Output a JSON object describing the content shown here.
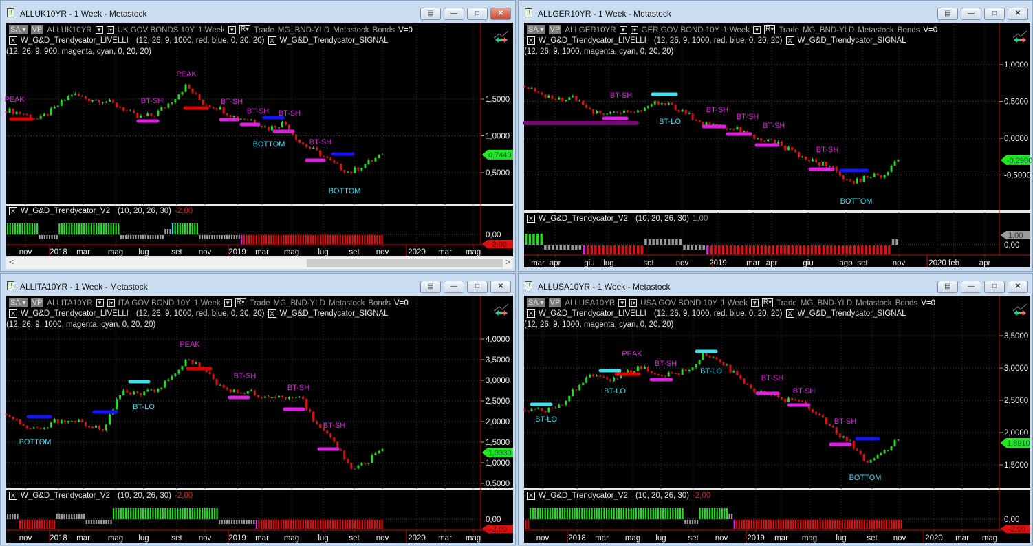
{
  "colors": {
    "up": "#22dd22",
    "down": "#e01010",
    "magenta": "#e020e0",
    "cyan": "#40e0f0",
    "blue": "#1414ff",
    "red": "#e00000",
    "purple": "#7a0a7a",
    "gray": "#9a9a9a",
    "last_price_tag": "#22e622"
  },
  "windows": [
    {
      "title": "ALLUK10YR - 1 Week - Metastock",
      "active": true,
      "header": {
        "sa": "SA",
        "vp": "VP",
        "symbol": "ALLUK10YR",
        "description": "UK GOV BONDS 10Y",
        "period": "1 Week",
        "r": "R",
        "trade": "Trade",
        "group": "MG_BND-YLD",
        "source": "Metastock",
        "sector": "Bonds",
        "v": "V=0"
      },
      "studies": {
        "livelli_name": "W_G&D_Trendycator_LIVELLI",
        "livelli_params": "(12, 26, 9, 1000, red, blue, 0, 20, 20)",
        "signal_name": "W_G&D_Trendycator_SIGNAL",
        "signal_params": "(12, 26, 9, 900, magenta, cyan, 0, 20, 20)"
      },
      "price_axis": [
        {
          "label": "1,5000",
          "value": 1.5
        },
        {
          "label": "1,0000",
          "value": 1.0
        },
        {
          "label": "0,5000",
          "value": 0.5
        }
      ],
      "last_price": "0,7440",
      "closes": [
        1.35,
        1.3,
        1.22,
        1.38,
        1.57,
        1.5,
        1.48,
        1.39,
        1.25,
        1.28,
        1.45,
        1.68,
        1.45,
        1.38,
        1.25,
        1.22,
        1.1,
        1.18,
        0.9,
        0.78,
        0.62,
        0.5,
        0.62,
        0.744
      ],
      "annotations": [
        {
          "text": "PEAK",
          "color": "magenta"
        },
        {
          "text": "BT-SH",
          "color": "magenta"
        },
        {
          "text": "PEAK",
          "color": "magenta"
        },
        {
          "text": "BT-SH",
          "color": "magenta"
        },
        {
          "text": "BT-SH",
          "color": "magenta"
        },
        {
          "text": "BT-SH",
          "color": "magenta"
        },
        {
          "text": "BOTTOM",
          "color": "cyan"
        },
        {
          "text": "BT-SH",
          "color": "magenta"
        },
        {
          "text": "BOTTOM",
          "color": "cyan"
        }
      ],
      "levels": [
        "red",
        "magenta",
        "red",
        "magenta",
        "magenta",
        "blue",
        "magenta",
        "magenta",
        "blue"
      ],
      "oscillator": {
        "name": "W_G&D_Trendycator_V2",
        "params": "(10, 20, 26, 30)",
        "value": "-2,00",
        "value_color": "#e02020",
        "zero_label": "0,00",
        "last_tag": "-2,00",
        "last_tag_color": "#e01010",
        "segments": [
          {
            "state": "green",
            "count": 13
          },
          {
            "state": "gray_lo",
            "count": 8
          },
          {
            "state": "green",
            "count": 25
          },
          {
            "state": "gray_lo",
            "count": 18
          },
          {
            "state": "gray_hi",
            "count": 3
          },
          {
            "state": "cyan",
            "count": 1
          },
          {
            "state": "green",
            "count": 10
          },
          {
            "state": "gray_lo",
            "count": 17
          },
          {
            "state": "magenta",
            "count": 1
          },
          {
            "state": "red",
            "count": 57
          }
        ]
      },
      "time_axis": [
        "nov",
        "2018",
        "mar",
        "mag",
        "lug",
        "set",
        "nov",
        "2019",
        "mar",
        "mag",
        "lug",
        "set",
        "nov",
        "2020",
        "mar",
        "mag"
      ],
      "scrollbar": {
        "left": "<",
        "right": ">"
      }
    },
    {
      "title": "ALLGER10YR - 1 Week - Metastock",
      "active": false,
      "header": {
        "sa": "SA",
        "vp": "VP",
        "symbol": "ALLGER10YR",
        "description": "GER GOV BOND 10Y",
        "period": "1 Week",
        "r": "R",
        "trade": "Trade",
        "group": "MG_BND-YLD",
        "source": "Metastock",
        "sector": "Bonds",
        "v": "V=0"
      },
      "studies": {
        "livelli_name": "W_G&D_Trendycator_LIVELLI",
        "livelli_params": "(12, 26, 9, 1000, red, blue, 0, 20, 20)",
        "signal_name": "W_G&D_Trendycator_SIGNAL",
        "signal_params": "(12, 26, 9, 1000, magenta, cyan, 0, 20, 20)"
      },
      "price_axis": [
        {
          "label": "1,0000",
          "value": 1.0
        },
        {
          "label": "0,5000",
          "value": 0.5
        },
        {
          "label": "0,0000",
          "value": 0.0
        },
        {
          "label": "-0,5000",
          "value": -0.5
        }
      ],
      "last_price": "-0,2980",
      "closes": [
        0.68,
        0.6,
        0.53,
        0.55,
        0.37,
        0.34,
        0.38,
        0.36,
        0.5,
        0.45,
        0.32,
        0.2,
        0.18,
        0.14,
        0.03,
        -0.02,
        -0.12,
        -0.25,
        -0.33,
        -0.37,
        -0.62,
        -0.52,
        -0.5,
        -0.298
      ],
      "annotations": [
        {
          "text": "BT-SH",
          "color": "magenta"
        },
        {
          "text": "BT-LO",
          "color": "cyan"
        },
        {
          "text": "BT-SH",
          "color": "magenta"
        },
        {
          "text": "BT-SH",
          "color": "magenta"
        },
        {
          "text": "BT-SH",
          "color": "magenta"
        },
        {
          "text": "BT-SH",
          "color": "magenta"
        },
        {
          "text": "BOTTOM",
          "color": "cyan"
        }
      ],
      "levels": [
        "purple",
        "magenta",
        "cyan",
        "magenta",
        "magenta",
        "magenta",
        "magenta",
        "blue"
      ],
      "oscillator": {
        "name": "W_G&D_Trendycator_V2",
        "params": "(10, 20, 26, 30)",
        "value": "1,00",
        "value_color": "#8a8a8a",
        "zero_label": "0,00",
        "last_tag": "1,00",
        "last_tag_color": "#9a9a9a",
        "segments": [
          {
            "state": "green",
            "count": 5
          },
          {
            "state": "gray_lo",
            "count": 10
          },
          {
            "state": "magenta",
            "count": 1
          },
          {
            "state": "red",
            "count": 15
          },
          {
            "state": "gray_hi",
            "count": 10
          },
          {
            "state": "gray_lo",
            "count": 6
          },
          {
            "state": "magenta",
            "count": 1
          },
          {
            "state": "red",
            "count": 47
          },
          {
            "state": "gray_hi",
            "count": 2
          }
        ]
      },
      "time_axis": [
        "mar",
        "apr",
        "giu",
        "lug",
        "set",
        "nov",
        "2019",
        "mar",
        "apr",
        "giu",
        "ago",
        "set",
        "nov",
        "2020",
        "feb",
        "apr"
      ]
    },
    {
      "title": "ALLITA10YR - 1 Week - Metastock",
      "active": false,
      "header": {
        "sa": "SA",
        "vp": "VP",
        "symbol": "ALLITA10YR",
        "description": "ITA GOV BOND 10Y",
        "period": "1 Week",
        "r": "R",
        "trade": "Trade",
        "group": "MG_BND-YLD",
        "source": "Metastock",
        "sector": "Bonds",
        "v": "V=0"
      },
      "studies": {
        "livelli_name": "W_G&D_Trendycator_LIVELLI",
        "livelli_params": "(12, 26, 9, 1000, red, blue, 0, 20, 20)",
        "signal_name": "W_G&D_Trendycator_SIGNAL",
        "signal_params": "(12, 26, 9, 1000, magenta, cyan, 0, 20, 20)"
      },
      "price_axis": [
        {
          "label": "4,0000",
          "value": 4.0
        },
        {
          "label": "3,5000",
          "value": 3.5
        },
        {
          "label": "3,0000",
          "value": 3.0
        },
        {
          "label": "2,5000",
          "value": 2.5
        },
        {
          "label": "2,0000",
          "value": 2.0
        },
        {
          "label": "1,5000",
          "value": 1.5
        },
        {
          "label": "1,0000",
          "value": 1.0
        },
        {
          "label": "0.5000",
          "value": 0.5
        }
      ],
      "last_price": "1,3330",
      "closes": [
        2.2,
        1.92,
        1.8,
        2.0,
        2.08,
        1.88,
        1.82,
        2.7,
        2.68,
        2.75,
        3.0,
        3.5,
        3.3,
        2.85,
        2.72,
        2.7,
        2.52,
        2.62,
        2.6,
        1.9,
        1.55,
        0.88,
        1.0,
        1.333
      ],
      "annotations": [
        {
          "text": "BOTTOM",
          "color": "cyan"
        },
        {
          "text": "BT-LO",
          "color": "cyan"
        },
        {
          "text": "PEAK",
          "color": "magenta"
        },
        {
          "text": "BT-SH",
          "color": "magenta"
        },
        {
          "text": "BT-SH",
          "color": "magenta"
        },
        {
          "text": "BT-SH",
          "color": "magenta"
        }
      ],
      "levels": [
        "blue",
        "blue",
        "cyan",
        "red",
        "magenta",
        "magenta",
        "magenta"
      ],
      "oscillator": {
        "name": "W_G&D_Trendycator_V2",
        "params": "(10, 20, 26, 30)",
        "value": "-2,00",
        "value_color": "#e02020",
        "zero_label": "0,00",
        "last_tag": "-2,00",
        "last_tag_color": "#e01010",
        "segments": [
          {
            "state": "gray_hi",
            "count": 5
          },
          {
            "state": "red",
            "count": 15
          },
          {
            "state": "gray_hi",
            "count": 12
          },
          {
            "state": "gray_lo",
            "count": 11
          },
          {
            "state": "green",
            "count": 43
          },
          {
            "state": "gray_lo",
            "count": 15
          },
          {
            "state": "magenta",
            "count": 1
          },
          {
            "state": "red",
            "count": 51
          }
        ]
      },
      "time_axis": [
        "nov",
        "2018",
        "mar",
        "mag",
        "lug",
        "set",
        "nov",
        "2019",
        "mar",
        "mag",
        "lug",
        "set",
        "nov",
        "2020",
        "mar",
        "mag"
      ]
    },
    {
      "title": "ALLUSA10YR - 1 Week - Metastock",
      "active": false,
      "header": {
        "sa": "SA",
        "vp": "VP",
        "symbol": "ALLUSA10YR",
        "description": "USA GOV BOND 10Y",
        "period": "1 Week",
        "r": "R",
        "trade": "Trade",
        "group": "MG_BND-YLD",
        "source": "Metastock",
        "sector": "Bonds",
        "v": "V=0"
      },
      "studies": {
        "livelli_name": "W_G&D_Trendycator_LIVELLI",
        "livelli_params": "(12, 26, 9, 1000, red, blue, 0, 20, 20)",
        "signal_name": "W_G&D_Trendycator_SIGNAL",
        "signal_params": "(12, 26, 9, 1000, magenta, cyan, 0, 20, 20)"
      },
      "price_axis": [
        {
          "label": "3,5000",
          "value": 3.5
        },
        {
          "label": "3,0000",
          "value": 3.0
        },
        {
          "label": "2,5000",
          "value": 2.5
        },
        {
          "label": "2,0000",
          "value": 2.0
        },
        {
          "label": "1,5000",
          "value": 1.5
        }
      ],
      "last_price": "1,8910",
      "closes": [
        2.32,
        2.35,
        2.36,
        2.65,
        2.88,
        2.8,
        2.9,
        3.02,
        2.92,
        2.9,
        2.96,
        3.2,
        3.12,
        2.88,
        2.66,
        2.62,
        2.51,
        2.5,
        2.3,
        2.05,
        1.85,
        1.52,
        1.68,
        1.891
      ],
      "annotations": [
        {
          "text": "BT-LO",
          "color": "cyan"
        },
        {
          "text": "BT-LO",
          "color": "cyan"
        },
        {
          "text": "PEAK",
          "color": "magenta"
        },
        {
          "text": "BT-SH",
          "color": "magenta"
        },
        {
          "text": "BT-LO",
          "color": "cyan"
        },
        {
          "text": "BT-SH",
          "color": "magenta"
        },
        {
          "text": "BT-SH",
          "color": "magenta"
        },
        {
          "text": "BT-SH",
          "color": "magenta"
        },
        {
          "text": "BOTTOM",
          "color": "cyan"
        }
      ],
      "levels": [
        "cyan",
        "cyan",
        "red",
        "magenta",
        "cyan",
        "magenta",
        "magenta",
        "magenta",
        "blue"
      ],
      "oscillator": {
        "name": "W_G&D_Trendycator_V2",
        "params": "(10, 20, 26, 30)",
        "value": "-2,00",
        "value_color": "#e02020",
        "zero_label": "0,00",
        "last_tag": "-2,00",
        "last_tag_color": "#e01010",
        "segments": [
          {
            "state": "red",
            "count": 2
          },
          {
            "state": "green",
            "count": 63
          },
          {
            "state": "gray_lo",
            "count": 6
          },
          {
            "state": "green",
            "count": 12
          },
          {
            "state": "gray_hi",
            "count": 2
          },
          {
            "state": "magenta",
            "count": 1
          },
          {
            "state": "red",
            "count": 68
          }
        ]
      },
      "time_axis": [
        "nov",
        "2018",
        "mar",
        "mag",
        "lug",
        "set",
        "nov",
        "2019",
        "mar",
        "mag",
        "lug",
        "set",
        "nov",
        "2020",
        "mar",
        "mag"
      ]
    }
  ]
}
